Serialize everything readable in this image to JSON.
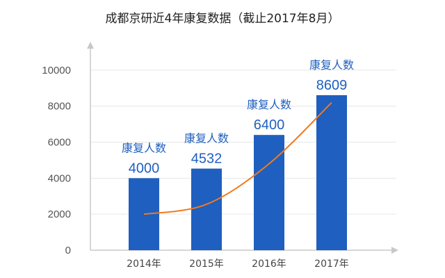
{
  "colors": {
    "bar": "#1f5fbf",
    "line": "#f07a1e",
    "axis": "#c8c8c8",
    "label": "#1f5fbf"
  },
  "chart_data": {
    "type": "bar",
    "title": "成都京研近4年康复数据（截止2017年8月）",
    "categories": [
      "2014年",
      "2015年",
      "2016年",
      "2017年"
    ],
    "values": [
      4000,
      4532,
      6400,
      8609
    ],
    "bar_caption": "康复人数",
    "trend_line": {
      "values": [
        2000,
        2550,
        4800,
        8200
      ]
    },
    "ylim": [
      0,
      11000
    ],
    "yticks": [
      "0",
      "2000",
      "4000",
      "6000",
      "8000",
      "10000"
    ],
    "xlabel": "",
    "ylabel": "",
    "grid": true,
    "legend": "none"
  }
}
